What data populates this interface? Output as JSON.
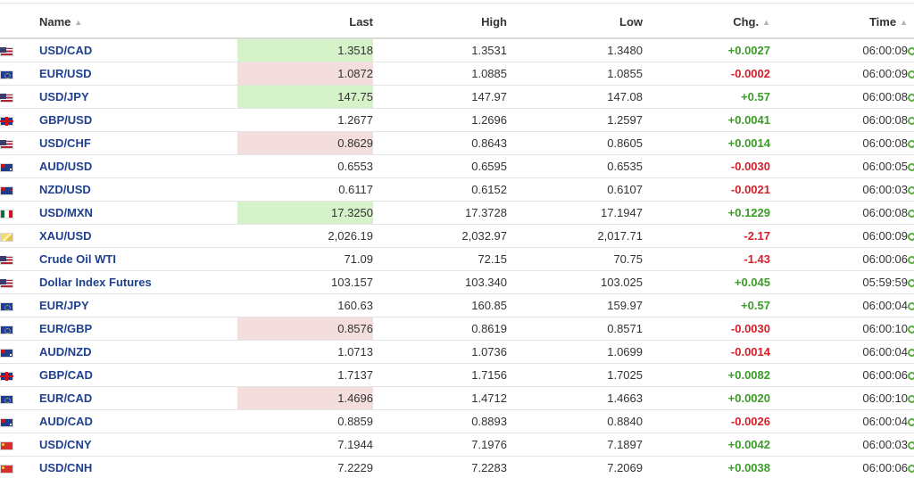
{
  "table": {
    "headers": {
      "name": "Name",
      "last": "Last",
      "high": "High",
      "low": "Low",
      "chg": "Chg.",
      "time": "Time"
    },
    "sort_icon": "sort-arrows-icon",
    "rows": [
      {
        "flag": "us",
        "name": "USD/CAD",
        "last": "1.3518",
        "high": "1.3531",
        "low": "1.3480",
        "chg": "+0.0027",
        "dir": "pos",
        "last_hl": "up",
        "time": "06:00:09"
      },
      {
        "flag": "eu",
        "name": "EUR/USD",
        "last": "1.0872",
        "high": "1.0885",
        "low": "1.0855",
        "chg": "-0.0002",
        "dir": "neg",
        "last_hl": "down",
        "time": "06:00:09"
      },
      {
        "flag": "us",
        "name": "USD/JPY",
        "last": "147.75",
        "high": "147.97",
        "low": "147.08",
        "chg": "+0.57",
        "dir": "pos",
        "last_hl": "up",
        "time": "06:00:08"
      },
      {
        "flag": "gb",
        "name": "GBP/USD",
        "last": "1.2677",
        "high": "1.2696",
        "low": "1.2597",
        "chg": "+0.0041",
        "dir": "pos",
        "last_hl": "",
        "time": "06:00:08"
      },
      {
        "flag": "us",
        "name": "USD/CHF",
        "last": "0.8629",
        "high": "0.8643",
        "low": "0.8605",
        "chg": "+0.0014",
        "dir": "pos",
        "last_hl": "down",
        "time": "06:00:08"
      },
      {
        "flag": "au",
        "name": "AUD/USD",
        "last": "0.6553",
        "high": "0.6595",
        "low": "0.6535",
        "chg": "-0.0030",
        "dir": "neg",
        "last_hl": "",
        "time": "06:00:05"
      },
      {
        "flag": "nz",
        "name": "NZD/USD",
        "last": "0.6117",
        "high": "0.6152",
        "low": "0.6107",
        "chg": "-0.0021",
        "dir": "neg",
        "last_hl": "",
        "time": "06:00:03"
      },
      {
        "flag": "mx",
        "name": "USD/MXN",
        "last": "17.3250",
        "high": "17.3728",
        "low": "17.1947",
        "chg": "+0.1229",
        "dir": "pos",
        "last_hl": "up",
        "time": "06:00:08"
      },
      {
        "flag": "gold",
        "name": "XAU/USD",
        "last": "2,026.19",
        "high": "2,032.97",
        "low": "2,017.71",
        "chg": "-2.17",
        "dir": "neg",
        "last_hl": "",
        "time": "06:00:09"
      },
      {
        "flag": "us",
        "name": "Crude Oil WTI",
        "last": "71.09",
        "high": "72.15",
        "low": "70.75",
        "chg": "-1.43",
        "dir": "neg",
        "last_hl": "",
        "time": "06:00:06"
      },
      {
        "flag": "us",
        "name": "Dollar Index Futures",
        "last": "103.157",
        "high": "103.340",
        "low": "103.025",
        "chg": "+0.045",
        "dir": "pos",
        "last_hl": "",
        "time": "05:59:59"
      },
      {
        "flag": "eu",
        "name": "EUR/JPY",
        "last": "160.63",
        "high": "160.85",
        "low": "159.97",
        "chg": "+0.57",
        "dir": "pos",
        "last_hl": "",
        "time": "06:00:04"
      },
      {
        "flag": "eu",
        "name": "EUR/GBP",
        "last": "0.8576",
        "high": "0.8619",
        "low": "0.8571",
        "chg": "-0.0030",
        "dir": "neg",
        "last_hl": "down",
        "time": "06:00:10"
      },
      {
        "flag": "au",
        "name": "AUD/NZD",
        "last": "1.0713",
        "high": "1.0736",
        "low": "1.0699",
        "chg": "-0.0014",
        "dir": "neg",
        "last_hl": "",
        "time": "06:00:04"
      },
      {
        "flag": "gb",
        "name": "GBP/CAD",
        "last": "1.7137",
        "high": "1.7156",
        "low": "1.7025",
        "chg": "+0.0082",
        "dir": "pos",
        "last_hl": "",
        "time": "06:00:06"
      },
      {
        "flag": "eu",
        "name": "EUR/CAD",
        "last": "1.4696",
        "high": "1.4712",
        "low": "1.4663",
        "chg": "+0.0020",
        "dir": "pos",
        "last_hl": "down",
        "time": "06:00:10"
      },
      {
        "flag": "au",
        "name": "AUD/CAD",
        "last": "0.8859",
        "high": "0.8893",
        "low": "0.8840",
        "chg": "-0.0026",
        "dir": "neg",
        "last_hl": "",
        "time": "06:00:04"
      },
      {
        "flag": "cn",
        "name": "USD/CNY",
        "last": "7.1944",
        "high": "7.1976",
        "low": "7.1897",
        "chg": "+0.0042",
        "dir": "pos",
        "last_hl": "",
        "time": "06:00:03"
      },
      {
        "flag": "cn",
        "name": "USD/CNH",
        "last": "7.2229",
        "high": "7.2283",
        "low": "7.2069",
        "chg": "+0.0038",
        "dir": "pos",
        "last_hl": "",
        "time": "06:00:06"
      }
    ]
  },
  "colors": {
    "positive": "#3c9c28",
    "negative": "#d1222b",
    "highlight_up": "#d6f2c8",
    "highlight_down": "#f3dddd",
    "link": "#1f3f8f"
  }
}
